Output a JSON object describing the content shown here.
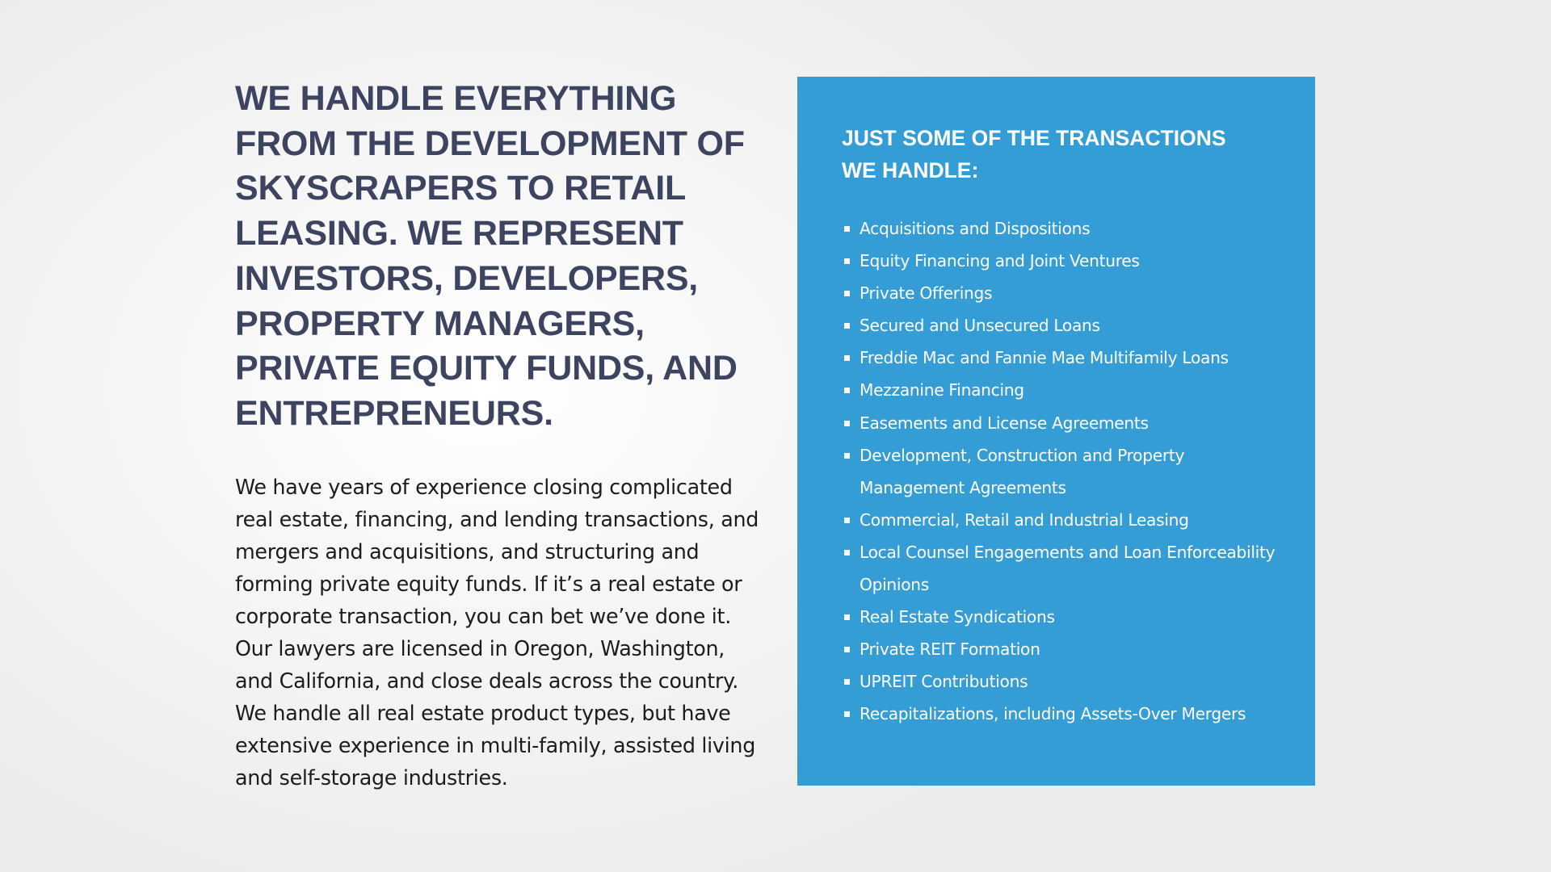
{
  "left": {
    "headline": "WE HANDLE EVERYTHING FROM THE DEVELOPMENT OF SKYSCRAPERS TO RETAIL LEASING. WE REPRESENT INVESTORS, DEVELOPERS, PROPERTY MANAGERS, PRIVATE EQUITY FUNDS, AND ENTREPRENEURS.",
    "body": "We have years of experience closing complicated real estate, financing, and lending transactions, and mergers and acquisitions, and structuring and forming private equity funds. If it’s a real estate or corporate transaction, you can bet we’ve done it. Our lawyers are licensed in Oregon, Washington, and California, and close deals across the country. We handle all real estate product types, but have extensive experience in multi-family, assisted living and self-storage industries."
  },
  "panel": {
    "title": "JUST SOME OF THE TRANSACTIONS WE HANDLE:",
    "items": [
      "Acquisitions and Dispositions",
      "Equity Financing and Joint Ventures",
      "Private Offerings",
      "Secured and Unsecured Loans",
      "Freddie Mac and Fannie Mae Multifamily Loans",
      "Mezzanine Financing",
      "Easements and License Agreements",
      "Development, Construction and Property Management Agreements",
      "Commercial, Retail and Industrial Leasing",
      "Local Counsel Engagements and Loan Enforceability Opinions",
      "Real Estate Syndications",
      "Private REIT Formation",
      "UPREIT Contributions",
      "Recapitalizations, including Assets-Over Mergers"
    ]
  },
  "colors": {
    "headline": "#3c4460",
    "panel_background": "#349dd6",
    "panel_text": "#ffffff",
    "body_text": "#1c1c1c"
  }
}
